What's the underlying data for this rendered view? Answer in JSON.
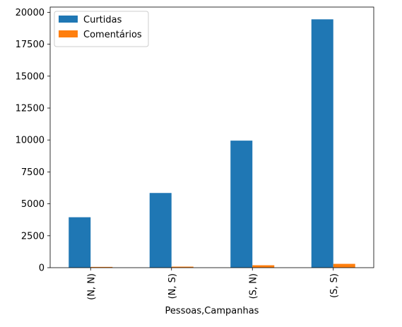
{
  "chart_data": {
    "type": "bar",
    "categories": [
      "(N, N)",
      "(N, S)",
      "(S, N)",
      "(S, S)"
    ],
    "series": [
      {
        "name": "Curtidas",
        "values": [
          3950,
          5850,
          9950,
          19450
        ],
        "color": "#1f77b4"
      },
      {
        "name": "Comentários",
        "values": [
          60,
          80,
          190,
          300
        ],
        "color": "#ff7f0e"
      }
    ],
    "title": "",
    "xlabel": "Pessoas,Campanhas",
    "ylabel": "",
    "ylim": [
      0,
      20410
    ],
    "yticks": [
      0,
      2500,
      5000,
      7500,
      10000,
      12500,
      15000,
      17500,
      20000
    ],
    "grid": false,
    "legend_position": "top-left"
  }
}
